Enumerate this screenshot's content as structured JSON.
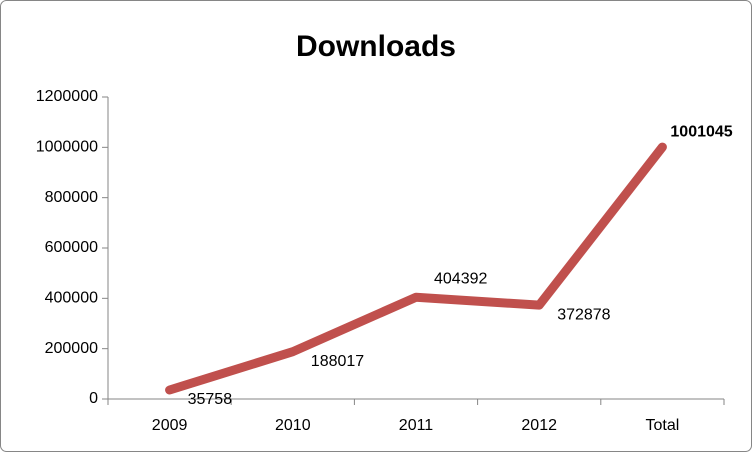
{
  "chart_data": {
    "type": "line",
    "title": "Downloads",
    "categories": [
      "2009",
      "2010",
      "2011",
      "2012",
      "Total"
    ],
    "values": [
      35758,
      188017,
      404392,
      372878,
      1001045
    ],
    "color": "#c0504d",
    "ylim": [
      0,
      1200000
    ],
    "yticks": [
      0,
      200000,
      400000,
      600000,
      800000,
      1000000,
      1200000
    ],
    "grid": false
  }
}
